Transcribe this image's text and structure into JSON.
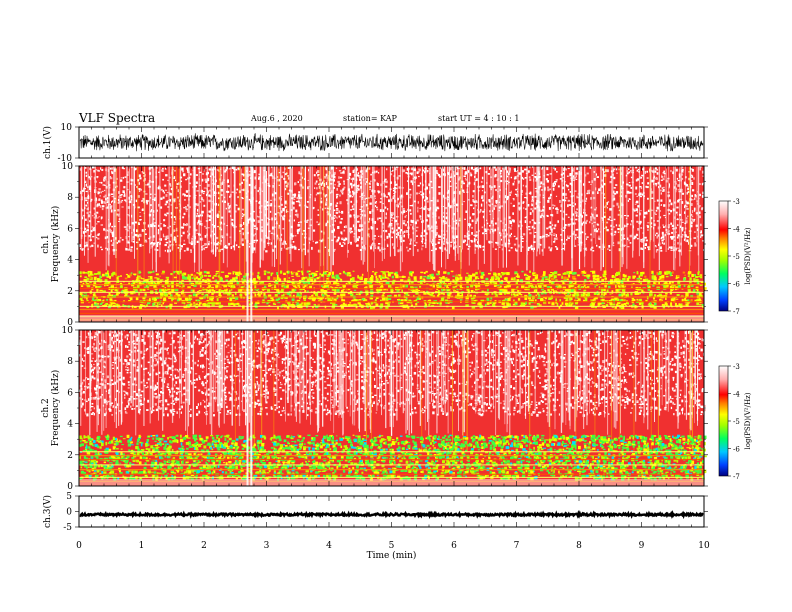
{
  "header": {
    "title": "VLF Spectra",
    "date": "Aug.6 , 2020",
    "station": "station= KAP",
    "start": "start UT = 4 : 10 : 1"
  },
  "colorbar": {
    "ticks": [
      "-3",
      "-4",
      "-5",
      "-6",
      "-7"
    ],
    "label": "log(PSD)(V²/Hz)",
    "colors": [
      "#000080",
      "#0040ff",
      "#00c8ff",
      "#00ff60",
      "#a0ff00",
      "#ffff00",
      "#ff8000",
      "#ff0000",
      "#ffb0b0",
      "#ffffff"
    ]
  },
  "chart_data": [
    {
      "type": "line",
      "panel": "ch1-waveform",
      "ylabel": "ch.1(V)",
      "ylim": [
        -10,
        10
      ],
      "yticks": [
        "10",
        "-10"
      ],
      "xlim": [
        0,
        10
      ],
      "description_values": "dense waveform oscillating between about -6 and +6 V"
    },
    {
      "type": "heatmap",
      "panel": "ch1-spectrogram",
      "ylabel": "ch.1 Frequency (kHz)",
      "ylim": [
        0,
        10
      ],
      "yticks": [
        "0",
        "2",
        "4",
        "6",
        "8",
        "10"
      ],
      "xlim": [
        0,
        10
      ],
      "zlim": [
        -7,
        -3
      ],
      "colorbar_label": "log(PSD)(V²/Hz)"
    },
    {
      "type": "heatmap",
      "panel": "ch2-spectrogram",
      "ylabel": "ch.2 Frequency (kHz)",
      "ylim": [
        0,
        10
      ],
      "yticks": [
        "0",
        "2",
        "4",
        "6",
        "8",
        "10"
      ],
      "xlim": [
        0,
        10
      ],
      "zlim": [
        -7,
        -3
      ],
      "colorbar_label": "log(PSD)(V²/Hz)"
    },
    {
      "type": "line",
      "panel": "ch3-waveform",
      "ylabel": "ch.3(V)",
      "ylim": [
        -5,
        5
      ],
      "yticks": [
        "5",
        "0",
        "-5"
      ],
      "xlim": [
        0,
        10
      ],
      "xlabel": "Time (min)",
      "xticks": [
        "0",
        "1",
        "2",
        "3",
        "4",
        "5",
        "6",
        "7",
        "8",
        "9",
        "10"
      ],
      "level": -1
    }
  ]
}
